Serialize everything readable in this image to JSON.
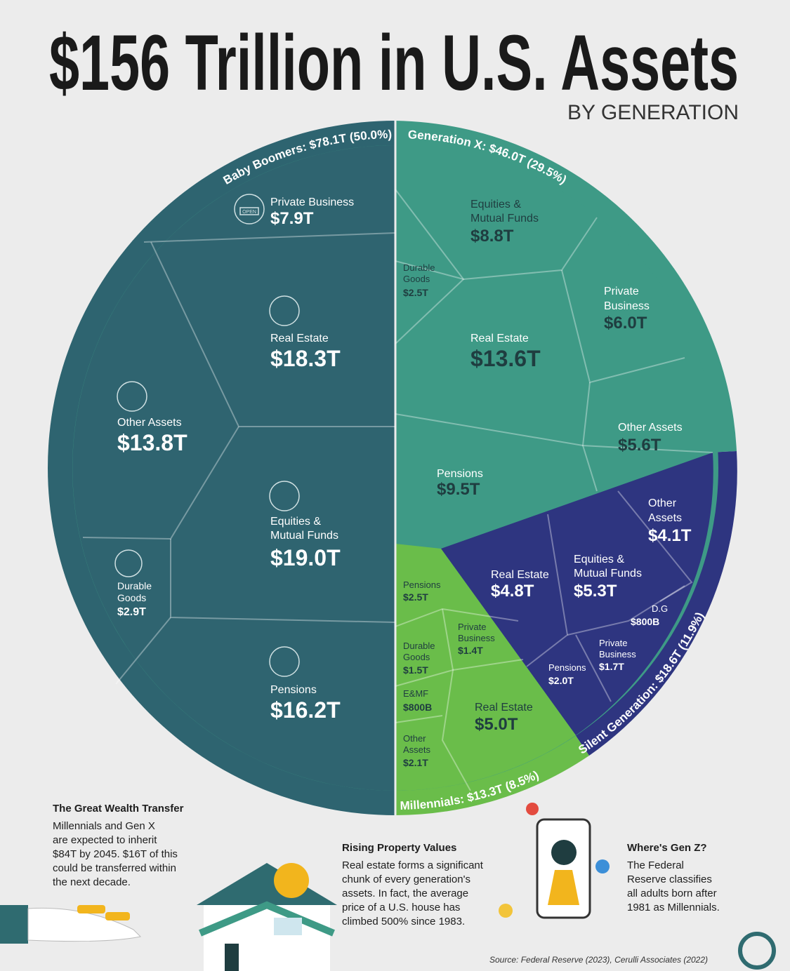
{
  "header": {
    "title": "$156 Trillion in U.S. Assets",
    "subtitle": "BY GENERATION"
  },
  "generations": [
    {
      "label": "Baby Boomers: $78.1T (50.0%)",
      "cells": [
        {
          "name": [
            "Private Business"
          ],
          "value": "$7.9T"
        },
        {
          "name": [
            "Real Estate"
          ],
          "value": "$18.3T"
        },
        {
          "name": [
            "Other Assets"
          ],
          "value": "$13.8T"
        },
        {
          "name": [
            "Equities &",
            "Mutual Funds"
          ],
          "value": "$19.0T"
        },
        {
          "name": [
            "Durable",
            "Goods"
          ],
          "value": "$2.9T"
        },
        {
          "name": [
            "Pensions"
          ],
          "value": "$16.2T"
        }
      ]
    },
    {
      "label": "Generation X: $46.0T (29.5%)",
      "cells": [
        {
          "name": [
            "Equities &",
            "Mutual Funds"
          ],
          "value": "$8.8T"
        },
        {
          "name": [
            "Durable",
            "Goods"
          ],
          "value": "$2.5T"
        },
        {
          "name": [
            "Private",
            "Business"
          ],
          "value": "$6.0T"
        },
        {
          "name": [
            "Real Estate"
          ],
          "value": "$13.6T"
        },
        {
          "name": [
            "Other Assets"
          ],
          "value": "$5.6T"
        },
        {
          "name": [
            "Pensions"
          ],
          "value": "$9.5T"
        }
      ]
    },
    {
      "label": "Silent Generation: $18.6T (11.9%)",
      "cells": [
        {
          "name": [
            "Other",
            "Assets"
          ],
          "value": "$4.1T"
        },
        {
          "name": [
            "Real Estate"
          ],
          "value": "$4.8T"
        },
        {
          "name": [
            "Equities &",
            "Mutual Funds"
          ],
          "value": "$5.3T"
        },
        {
          "name": [
            "D.G"
          ],
          "value": "$800B"
        },
        {
          "name": [
            "Private",
            "Business"
          ],
          "value": "$1.7T"
        },
        {
          "name": [
            "Pensions"
          ],
          "value": "$2.0T"
        }
      ]
    },
    {
      "label": "Millennials: $13.3T (8.5%)",
      "cells": [
        {
          "name": [
            "Pensions"
          ],
          "value": "$2.5T"
        },
        {
          "name": [
            "Private",
            "Business"
          ],
          "value": "$1.4T"
        },
        {
          "name": [
            "Durable",
            "Goods"
          ],
          "value": "$1.5T"
        },
        {
          "name": [
            "E&MF"
          ],
          "value": "$800B"
        },
        {
          "name": [
            "Real Estate"
          ],
          "value": "$5.0T"
        },
        {
          "name": [
            "Other",
            "Assets"
          ],
          "value": "$2.1T"
        }
      ]
    }
  ],
  "notes": [
    {
      "title": "The Great Wealth Transfer",
      "lines": [
        "Millennials and Gen X",
        "are expected to inherit",
        "$84T by 2045. $16T of this",
        "could be transferred within",
        "the next decade."
      ]
    },
    {
      "title": "Rising Property Values",
      "lines": [
        "Real estate forms a significant",
        "chunk of every generation's",
        "assets. In fact, the average",
        "price of a U.S. house has",
        "climbed 500% since 1983."
      ]
    },
    {
      "title": "Where's Gen Z?",
      "lines": [
        "The Federal",
        "Reserve classifies",
        "all adults born after",
        "1981 as Millennials."
      ]
    }
  ],
  "icon_label": "OPEN",
  "source": "Source: Federal Reserve (2023), Cerulli Associates (2022)"
}
